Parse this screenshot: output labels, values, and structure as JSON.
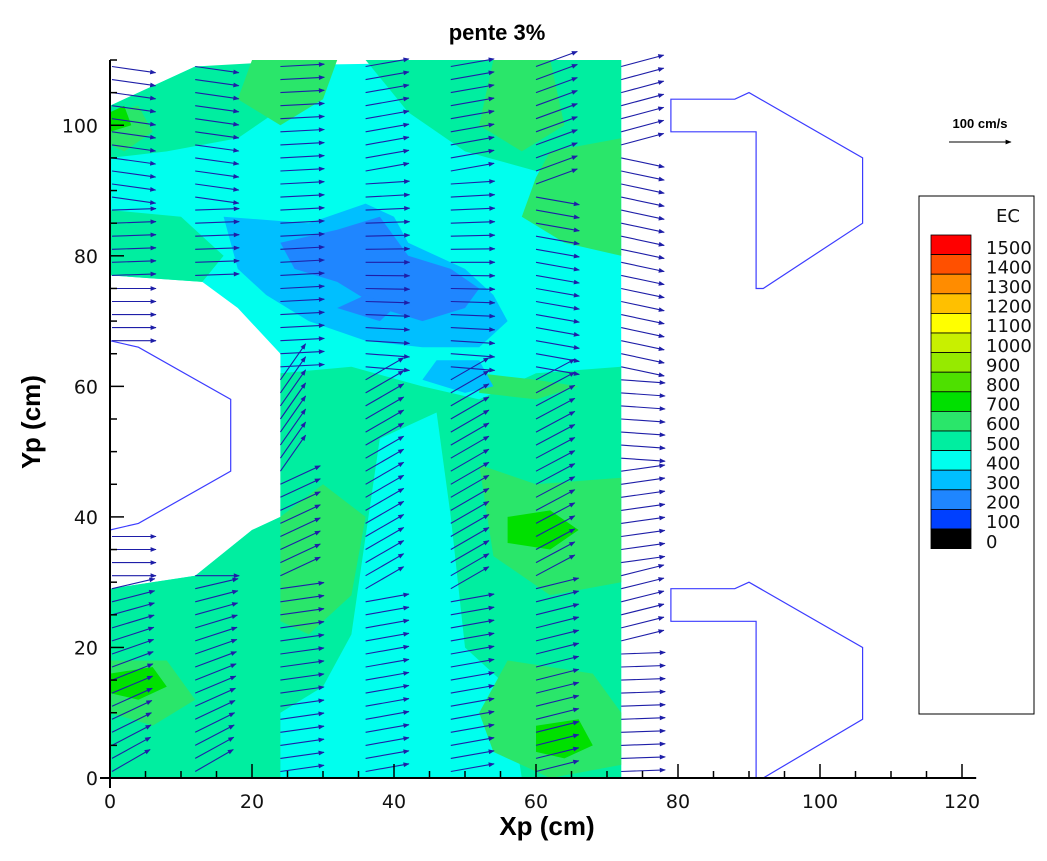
{
  "chart_data": {
    "type": "heatmap",
    "title": "pente 3%",
    "xlabel": "Xp (cm)",
    "ylabel": "Yp (cm)",
    "xlim": [
      0,
      120
    ],
    "ylim": [
      0,
      110
    ],
    "x_ticks": [
      0,
      20,
      40,
      60,
      80,
      100,
      120
    ],
    "y_ticks": [
      0,
      20,
      40,
      60,
      80,
      100
    ],
    "grid": false,
    "colorbar": {
      "title": "EC",
      "placement": "right",
      "levels": [
        1500,
        1400,
        1300,
        1200,
        1100,
        1000,
        900,
        800,
        700,
        600,
        500,
        400,
        300,
        200,
        100,
        0
      ],
      "colors": [
        "#ff0000",
        "#ff5000",
        "#ff8c00",
        "#ffc000",
        "#ffff00",
        "#c8f000",
        "#96ea00",
        "#4ee000",
        "#00e000",
        "#2ae66a",
        "#00eea0",
        "#00ffee",
        "#00bfff",
        "#1f86ff",
        "#0040ff",
        "#000000"
      ]
    },
    "scale_vector": {
      "label": "100 cm/s",
      "magnitude": 100
    },
    "vector_color": "#1e1ea8",
    "outline_color": "#3c3cff",
    "field_regions": [
      {
        "level": 400,
        "polygon": [
          [
            0,
            103
          ],
          [
            12,
            109
          ],
          [
            72,
            110
          ],
          [
            72,
            0
          ],
          [
            0,
            0
          ],
          [
            0,
            29
          ],
          [
            12,
            31
          ],
          [
            20,
            38
          ],
          [
            24,
            40
          ],
          [
            24,
            65
          ],
          [
            18,
            72
          ],
          [
            13,
            76
          ],
          [
            0,
            77
          ]
        ]
      },
      {
        "level": 500,
        "polygon": [
          [
            0,
            103
          ],
          [
            12,
            109
          ],
          [
            28,
            110
          ],
          [
            26,
            104
          ],
          [
            18,
            98
          ],
          [
            8,
            96
          ],
          [
            0,
            95
          ]
        ]
      },
      {
        "level": 500,
        "polygon": [
          [
            36,
            110
          ],
          [
            72,
            110
          ],
          [
            72,
            95
          ],
          [
            60,
            93
          ],
          [
            50,
            96
          ],
          [
            42,
            102
          ]
        ]
      },
      {
        "level": 500,
        "polygon": [
          [
            0,
            87
          ],
          [
            10,
            86
          ],
          [
            16,
            80
          ],
          [
            13,
            76
          ],
          [
            0,
            77
          ]
        ]
      },
      {
        "level": 500,
        "polygon": [
          [
            24,
            62
          ],
          [
            34,
            63
          ],
          [
            44,
            60
          ],
          [
            52,
            58
          ],
          [
            60,
            62
          ],
          [
            72,
            63
          ],
          [
            72,
            0
          ],
          [
            58,
            0
          ],
          [
            56,
            14
          ],
          [
            50,
            20
          ],
          [
            48,
            40
          ],
          [
            46,
            56
          ],
          [
            38,
            52
          ],
          [
            34,
            22
          ],
          [
            30,
            14
          ],
          [
            24,
            10
          ],
          [
            24,
            0
          ],
          [
            0,
            0
          ],
          [
            0,
            29
          ],
          [
            12,
            31
          ],
          [
            20,
            38
          ],
          [
            24,
            40
          ]
        ]
      },
      {
        "level": 500,
        "polygon": [
          [
            0,
            20
          ],
          [
            12,
            22
          ],
          [
            16,
            8
          ],
          [
            10,
            0
          ],
          [
            0,
            0
          ]
        ]
      },
      {
        "level": 600,
        "polygon": [
          [
            20,
            110
          ],
          [
            32,
            110
          ],
          [
            30,
            104
          ],
          [
            24,
            100
          ],
          [
            18,
            104
          ]
        ]
      },
      {
        "level": 600,
        "polygon": [
          [
            0,
            102
          ],
          [
            4,
            103
          ],
          [
            6,
            99
          ],
          [
            2,
            96
          ],
          [
            0,
            97
          ]
        ]
      },
      {
        "level": 600,
        "polygon": [
          [
            54,
            110
          ],
          [
            62,
            110
          ],
          [
            64,
            100
          ],
          [
            58,
            96
          ],
          [
            52,
            100
          ]
        ]
      },
      {
        "level": 600,
        "polygon": [
          [
            62,
            96
          ],
          [
            72,
            98
          ],
          [
            72,
            80
          ],
          [
            64,
            82
          ],
          [
            58,
            86
          ],
          [
            60,
            92
          ]
        ]
      },
      {
        "level": 600,
        "polygon": [
          [
            24,
            40
          ],
          [
            30,
            45
          ],
          [
            36,
            40
          ],
          [
            34,
            28
          ],
          [
            28,
            22
          ],
          [
            24,
            24
          ]
        ]
      },
      {
        "level": 600,
        "polygon": [
          [
            52,
            48
          ],
          [
            60,
            45
          ],
          [
            72,
            46
          ],
          [
            72,
            30
          ],
          [
            62,
            28
          ],
          [
            54,
            34
          ]
        ]
      },
      {
        "level": 600,
        "polygon": [
          [
            0,
            18
          ],
          [
            8,
            18
          ],
          [
            12,
            12
          ],
          [
            6,
            8
          ],
          [
            0,
            10
          ]
        ]
      },
      {
        "level": 600,
        "polygon": [
          [
            56,
            18
          ],
          [
            68,
            16
          ],
          [
            72,
            10
          ],
          [
            72,
            2
          ],
          [
            62,
            0
          ],
          [
            54,
            4
          ],
          [
            52,
            10
          ]
        ]
      },
      {
        "level": 600,
        "polygon": [
          [
            52,
            62
          ],
          [
            60,
            61
          ],
          [
            66,
            60
          ],
          [
            60,
            58
          ],
          [
            52,
            59
          ]
        ]
      },
      {
        "level": 700,
        "polygon": [
          [
            0,
            16
          ],
          [
            6,
            17
          ],
          [
            8,
            14
          ],
          [
            4,
            12
          ],
          [
            0,
            13
          ]
        ]
      },
      {
        "level": 700,
        "polygon": [
          [
            56,
            40
          ],
          [
            62,
            41
          ],
          [
            66,
            38
          ],
          [
            62,
            35
          ],
          [
            56,
            36
          ]
        ]
      },
      {
        "level": 700,
        "polygon": [
          [
            60,
            8
          ],
          [
            66,
            9
          ],
          [
            68,
            5
          ],
          [
            64,
            3
          ],
          [
            60,
            4
          ]
        ]
      },
      {
        "level": 700,
        "polygon": [
          [
            0,
            102
          ],
          [
            2,
            103
          ],
          [
            3,
            100
          ],
          [
            0,
            99
          ]
        ]
      },
      {
        "level": 300,
        "polygon": [
          [
            16,
            86
          ],
          [
            28,
            85
          ],
          [
            36,
            88
          ],
          [
            40,
            86
          ],
          [
            42,
            82
          ],
          [
            50,
            78
          ],
          [
            54,
            74
          ],
          [
            56,
            70
          ],
          [
            52,
            66
          ],
          [
            44,
            66
          ],
          [
            36,
            67
          ],
          [
            28,
            70
          ],
          [
            22,
            74
          ],
          [
            18,
            78
          ]
        ]
      },
      {
        "level": 300,
        "polygon": [
          [
            46,
            64
          ],
          [
            52,
            64
          ],
          [
            54,
            60
          ],
          [
            50,
            59
          ],
          [
            44,
            61
          ]
        ]
      },
      {
        "level": 200,
        "polygon": [
          [
            24,
            82
          ],
          [
            32,
            84
          ],
          [
            38,
            86
          ],
          [
            42,
            80
          ],
          [
            48,
            78
          ],
          [
            52,
            75
          ],
          [
            50,
            72
          ],
          [
            44,
            70
          ],
          [
            38,
            72
          ],
          [
            32,
            76
          ],
          [
            26,
            78
          ]
        ]
      },
      {
        "level": 200,
        "polygon": [
          [
            32,
            72
          ],
          [
            36,
            74
          ],
          [
            40,
            72
          ],
          [
            38,
            70
          ]
        ]
      }
    ],
    "obstacles": [
      {
        "polygon": [
          [
            0,
            67
          ],
          [
            4,
            66
          ],
          [
            17,
            58
          ],
          [
            17,
            47
          ],
          [
            4,
            39
          ],
          [
            0,
            38
          ]
        ]
      },
      {
        "polygon": [
          [
            79,
            104
          ],
          [
            88,
            104
          ],
          [
            90,
            105
          ],
          [
            106,
            95
          ],
          [
            106,
            85
          ],
          [
            92,
            75
          ],
          [
            91,
            75
          ],
          [
            91,
            99
          ],
          [
            79,
            99
          ]
        ]
      },
      {
        "polygon": [
          [
            79,
            29
          ],
          [
            88,
            29
          ],
          [
            90,
            30
          ],
          [
            106,
            20
          ],
          [
            106,
            9
          ],
          [
            92,
            0
          ],
          [
            91,
            0
          ],
          [
            91,
            24
          ],
          [
            79,
            24
          ]
        ]
      }
    ],
    "vector_columns": {
      "x": [
        0,
        12,
        24,
        36,
        48,
        60,
        72
      ],
      "y": [
        1,
        3,
        5,
        7,
        9,
        11,
        13,
        15,
        17,
        19,
        21,
        23,
        25,
        27,
        29,
        31,
        33,
        35,
        37,
        39,
        41,
        43,
        45,
        47,
        49,
        51,
        53,
        55,
        57,
        59,
        61,
        63,
        65,
        67,
        69,
        71,
        73,
        75,
        77,
        79,
        81,
        83,
        85,
        87,
        89,
        91,
        93,
        95,
        97,
        99,
        101,
        103,
        105,
        107,
        109
      ]
    }
  }
}
